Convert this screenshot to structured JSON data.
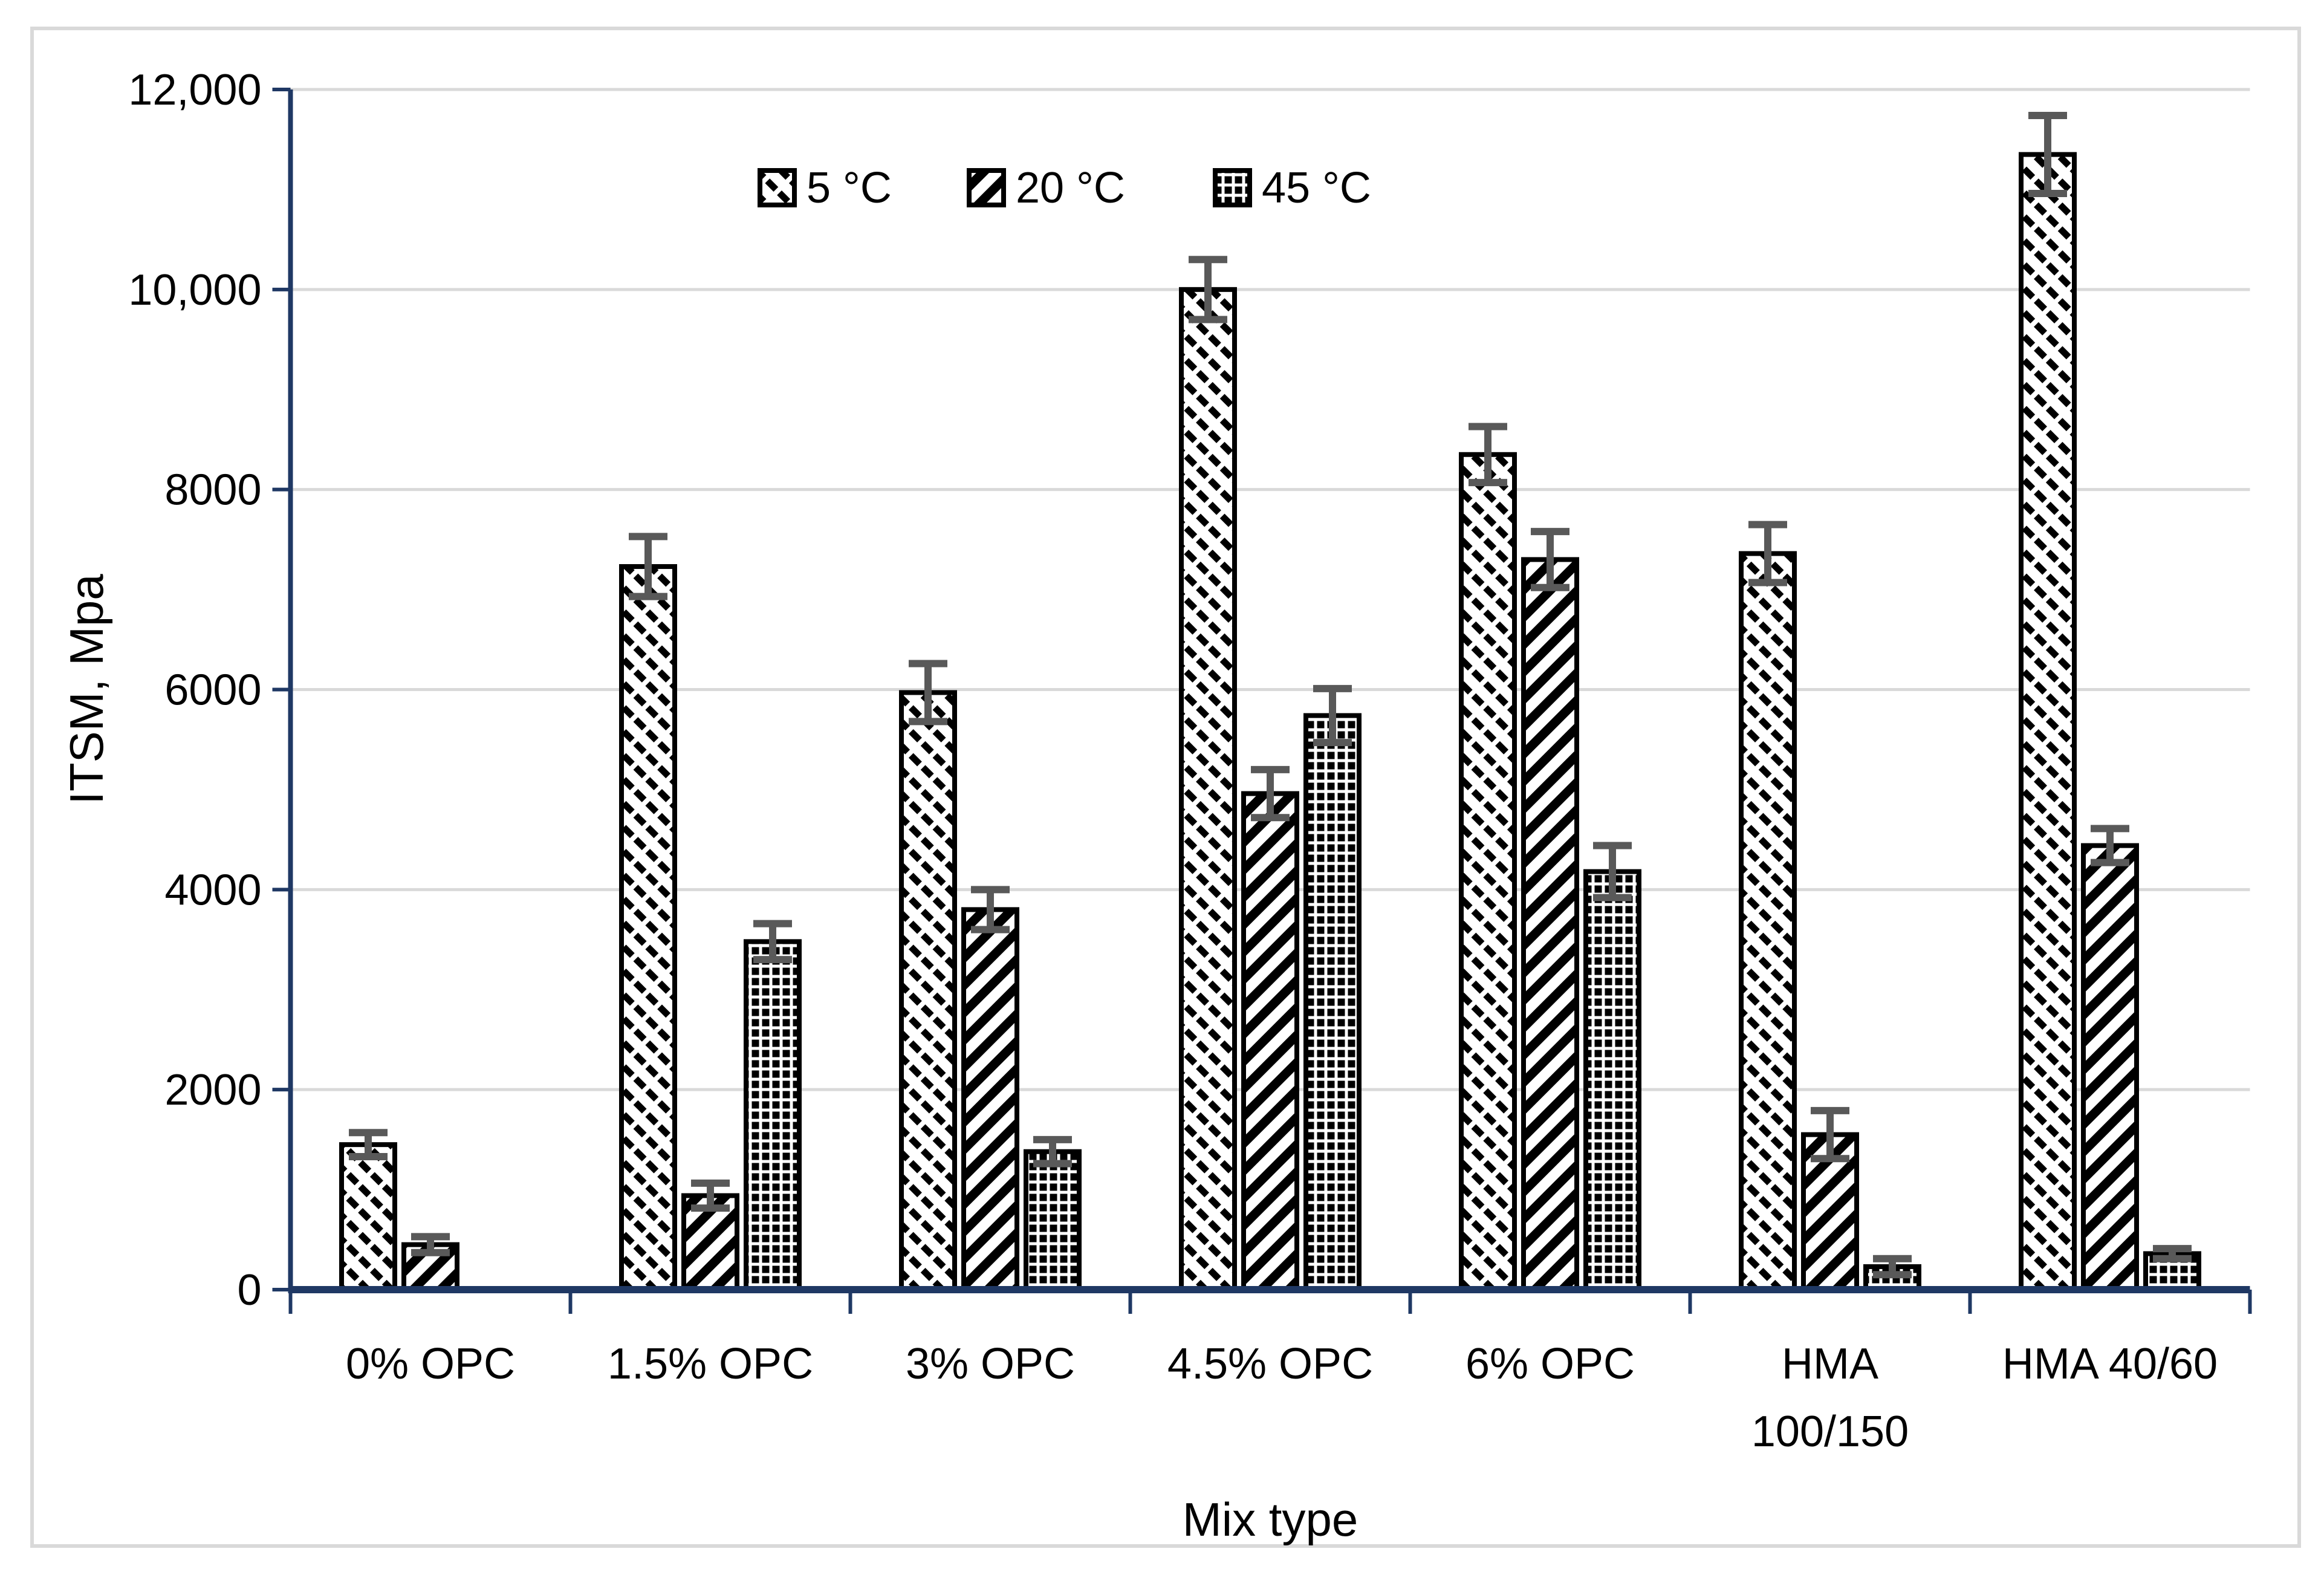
{
  "chart_data": {
    "type": "bar",
    "title": "",
    "xlabel": "Mix type",
    "ylabel": "ITSM, Mpa",
    "ylim": [
      0,
      12000
    ],
    "ytick_step": 2000,
    "ytick_labels": [
      "0",
      "2000",
      "4000",
      "6000",
      "8000",
      "10,000",
      "12,000"
    ],
    "categories": [
      "0% OPC",
      "1.5% OPC",
      "3% OPC",
      "4.5% OPC",
      "6% OPC",
      "HMA 100/150",
      "HMA 40/60"
    ],
    "series": [
      {
        "name": "5 °C",
        "pattern": "diagonal-dash-down",
        "values": [
          1450,
          7230,
          5970,
          10000,
          8350,
          7360,
          11350
        ],
        "errors": [
          120,
          300,
          290,
          300,
          280,
          290,
          390
        ]
      },
      {
        "name": "20 °C",
        "pattern": "diagonal-stripe-up",
        "values": [
          450,
          940,
          3800,
          4960,
          7300,
          1550,
          4440
        ],
        "errors": [
          80,
          125,
          200,
          240,
          280,
          240,
          170
        ]
      },
      {
        "name": "45 °C",
        "pattern": "dot-grid",
        "values": [
          null,
          3480,
          1380,
          5740,
          4180,
          230,
          360
        ],
        "errors": [
          null,
          180,
          120,
          270,
          260,
          80,
          50
        ]
      }
    ],
    "grid": "horizontal",
    "legend_position": "top-center",
    "colors": {
      "axis": "#1f3864",
      "gridline": "#d9d9d9",
      "frame": "#d9d9d9",
      "error_bar": "#595959",
      "bar_outline": "#000000",
      "bar_fill_bg": "#ffffff",
      "text": "#000000",
      "background": "#ffffff"
    }
  }
}
